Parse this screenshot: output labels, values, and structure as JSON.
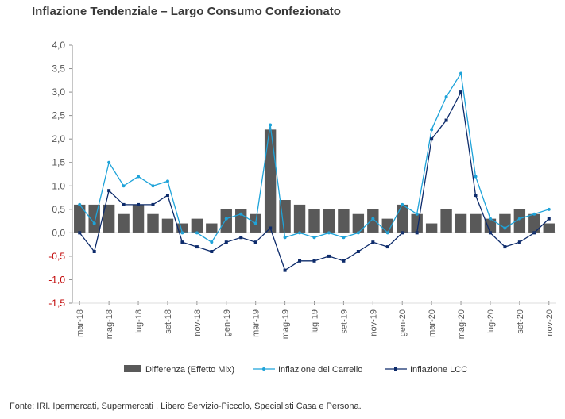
{
  "title": "Inflazione Tendenziale – Largo Consumo Confezionato",
  "source": "Fonte: IRI. Ipermercati, Supermercati , Libero Servizio-Piccolo, Specialisti Casa e Persona.",
  "colors": {
    "bar": "#595959",
    "carrello": "#1ea3d9",
    "lcc": "#0d2b6b",
    "negative_tick": "#c00000"
  },
  "chart_data": {
    "type": "bar+line",
    "categories": [
      "mar-18",
      "apr-18",
      "mag-18",
      "giu-18",
      "lug-18",
      "ago-18",
      "set-18",
      "ott-18",
      "nov-18",
      "dic-18",
      "gen-19",
      "feb-19",
      "mar-19",
      "apr-19",
      "mag-19",
      "giu-19",
      "lug-19",
      "ago-19",
      "set-19",
      "ott-19",
      "nov-19",
      "dic-19",
      "gen-20",
      "feb-20",
      "mar-20",
      "apr-20",
      "mag-20",
      "giu-20",
      "lug-20",
      "ago-20",
      "set-20",
      "ott-20",
      "nov-20"
    ],
    "x_tick_labels": [
      "mar-18",
      "mag-18",
      "lug-18",
      "set-18",
      "nov-18",
      "gen-19",
      "mar-19",
      "mag-19",
      "lug-19",
      "set-19",
      "nov-19",
      "gen-20",
      "mar-20",
      "mag-20",
      "lug-20",
      "set-20",
      "nov-20"
    ],
    "ylim": [
      -1.5,
      4.0
    ],
    "y_ticks": [
      "-1,5",
      "-1,0",
      "-0,5",
      "0,0",
      "0,5",
      "1,0",
      "1,5",
      "2,0",
      "2,5",
      "3,0",
      "3,5",
      "4,0"
    ],
    "y_tick_values": [
      -1.5,
      -1.0,
      -0.5,
      0.0,
      0.5,
      1.0,
      1.5,
      2.0,
      2.5,
      3.0,
      3.5,
      4.0
    ],
    "series": [
      {
        "name": "Differenza (Effetto Mix)",
        "kind": "bar",
        "values": [
          0.6,
          0.6,
          0.6,
          0.4,
          0.6,
          0.4,
          0.3,
          0.2,
          0.3,
          0.2,
          0.5,
          0.5,
          0.4,
          2.2,
          0.7,
          0.6,
          0.5,
          0.5,
          0.5,
          0.4,
          0.5,
          0.3,
          0.6,
          0.4,
          0.2,
          0.5,
          0.4,
          0.4,
          0.3,
          0.4,
          0.5,
          0.4,
          0.2
        ]
      },
      {
        "name": "Inflazione del Carrello",
        "kind": "line",
        "values": [
          0.6,
          0.2,
          1.5,
          1.0,
          1.2,
          1.0,
          1.1,
          0.0,
          0.0,
          -0.2,
          0.3,
          0.4,
          0.2,
          2.3,
          -0.1,
          0.0,
          -0.1,
          0.0,
          -0.1,
          0.0,
          0.3,
          0.0,
          0.6,
          0.4,
          2.2,
          2.9,
          3.4,
          1.2,
          0.3,
          0.1,
          0.3,
          0.4,
          0.5
        ]
      },
      {
        "name": "Inflazione LCC",
        "kind": "line",
        "values": [
          0.0,
          -0.4,
          0.9,
          0.6,
          0.6,
          0.6,
          0.8,
          -0.2,
          -0.3,
          -0.4,
          -0.2,
          -0.1,
          -0.2,
          0.1,
          -0.8,
          -0.6,
          -0.6,
          -0.5,
          -0.6,
          -0.4,
          -0.2,
          -0.3,
          0.0,
          0.0,
          2.0,
          2.4,
          3.0,
          0.8,
          0.0,
          -0.3,
          -0.2,
          0.0,
          0.3
        ]
      }
    ],
    "legend_position": "bottom",
    "grid": false
  }
}
